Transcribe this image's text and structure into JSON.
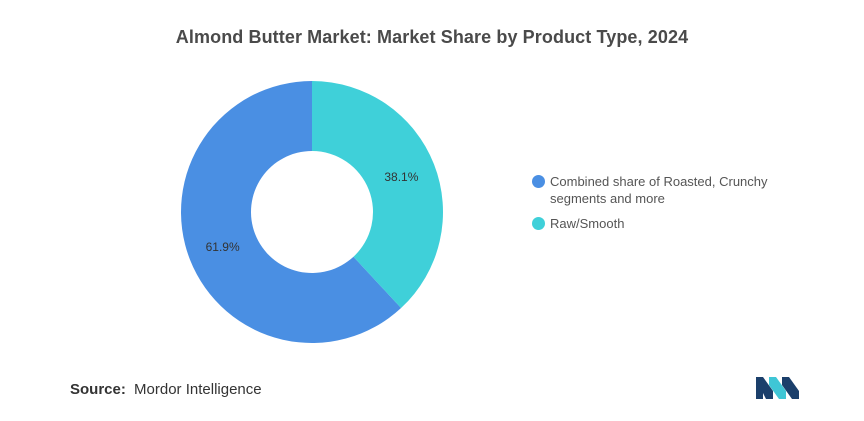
{
  "title": "Almond Butter Market: Market Share by Product Type, 2024",
  "chart_data": {
    "type": "donut",
    "title": "Almond Butter Market: Market Share by Product Type, 2024",
    "series": [
      {
        "name": "Combined share of Roasted, Crunchy segments and more",
        "value": 61.9,
        "label": "61.9%",
        "color": "#4a8fe3"
      },
      {
        "name": "Raw/Smooth",
        "value": 38.1,
        "label": "38.1%",
        "color": "#3fd0d9"
      }
    ],
    "legend_position": "right"
  },
  "source": {
    "label": "Source:",
    "value": "Mordor Intelligence"
  },
  "logo": {
    "name": "mordor-intelligence-logo",
    "colors": [
      "#1b3f6b",
      "#3fc6d6"
    ]
  }
}
